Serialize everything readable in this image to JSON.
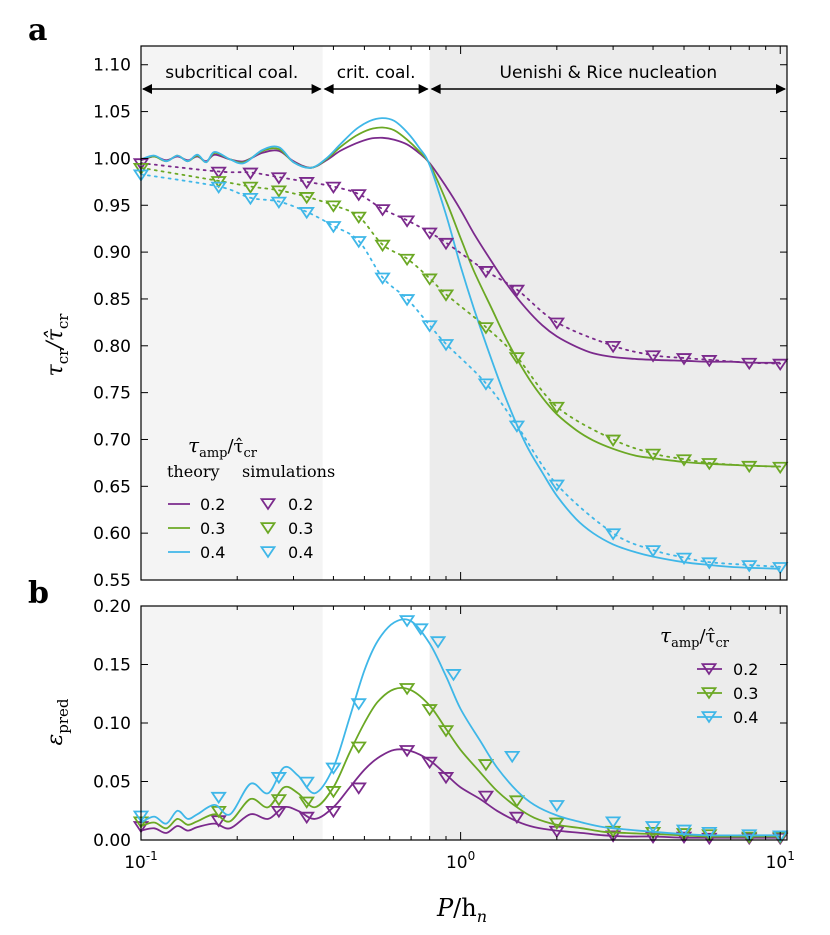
{
  "panel_labels": [
    "a",
    "b"
  ],
  "regions": {
    "labels": [
      "subcritical coal.",
      "crit. coal.",
      "Uenishi & Rice nucleation"
    ]
  },
  "legend_a": {
    "title_main": "τ",
    "title_sub": "amp",
    "title_rest": "/τ̂",
    "title_sub2": "cr",
    "col_theory": "theory",
    "col_sim": "simulations",
    "entries": [
      "0.2",
      "0.3",
      "0.4"
    ]
  },
  "legend_b": {
    "title_main": "τ",
    "title_sub": "amp",
    "title_rest": "/τ̂",
    "title_sub2": "cr",
    "entries": [
      "0.2",
      "0.3",
      "0.4"
    ]
  },
  "colors": {
    "0.2": "#7b2a8c",
    "0.3": "#6ba824",
    "0.4": "#3fb7e8",
    "shade": "#ececec",
    "shade_light": "#f4f4f4"
  },
  "chart_data": [
    {
      "type": "line",
      "panel": "a",
      "title": "",
      "ylabel_main": "τ",
      "ylabel_sub": "cr",
      "ylabel_rest": "/τ̂",
      "ylabel_sub2": "cr",
      "xscale": "log",
      "xlim": [
        0.1,
        10.5
      ],
      "ylim": [
        0.55,
        1.12
      ],
      "yticks": [
        "0.55",
        "0.60",
        "0.65",
        "0.70",
        "0.75",
        "0.80",
        "0.85",
        "0.90",
        "0.95",
        "1.00",
        "1.05",
        "1.10"
      ],
      "region_bounds": [
        0.37,
        0.8
      ],
      "series": [
        {
          "name": "0.2",
          "color": "#7b2a8c",
          "sim_x": [
            0.1,
            0.175,
            0.22,
            0.27,
            0.33,
            0.4,
            0.48,
            0.57,
            0.68,
            0.8,
            0.9,
            1.2,
            1.5,
            2.0,
            3.0,
            4.0,
            5.0,
            6.0,
            8.0,
            10.0
          ],
          "sim_y": [
            0.995,
            0.986,
            0.985,
            0.98,
            0.975,
            0.97,
            0.962,
            0.946,
            0.934,
            0.921,
            0.91,
            0.88,
            0.86,
            0.825,
            0.8,
            0.79,
            0.787,
            0.785,
            0.782,
            0.781
          ]
        },
        {
          "name": "0.3",
          "color": "#6ba824",
          "sim_x": [
            0.1,
            0.175,
            0.22,
            0.27,
            0.33,
            0.4,
            0.48,
            0.57,
            0.68,
            0.8,
            0.9,
            1.2,
            1.5,
            2.0,
            3.0,
            4.0,
            5.0,
            6.0,
            8.0,
            10.0
          ],
          "sim_y": [
            0.99,
            0.976,
            0.97,
            0.966,
            0.959,
            0.95,
            0.938,
            0.908,
            0.893,
            0.872,
            0.855,
            0.82,
            0.788,
            0.735,
            0.7,
            0.685,
            0.679,
            0.675,
            0.672,
            0.671
          ]
        },
        {
          "name": "0.4",
          "color": "#3fb7e8",
          "sim_x": [
            0.1,
            0.175,
            0.22,
            0.27,
            0.33,
            0.4,
            0.48,
            0.57,
            0.68,
            0.8,
            0.9,
            1.2,
            1.5,
            2.0,
            3.0,
            4.0,
            5.0,
            6.0,
            8.0,
            10.0
          ],
          "sim_y": [
            0.983,
            0.97,
            0.958,
            0.954,
            0.943,
            0.928,
            0.912,
            0.873,
            0.85,
            0.822,
            0.802,
            0.76,
            0.715,
            0.652,
            0.6,
            0.582,
            0.574,
            0.569,
            0.566,
            0.564
          ]
        }
      ],
      "theory": [
        {
          "name": "0.2",
          "x": [
            0.1,
            0.11,
            0.12,
            0.13,
            0.14,
            0.15,
            0.16,
            0.17,
            0.19,
            0.21,
            0.24,
            0.27,
            0.3,
            0.34,
            0.38,
            0.42,
            0.47,
            0.52,
            0.57,
            0.62,
            0.68,
            0.74,
            0.8,
            0.9,
            1.0,
            1.1,
            1.25,
            1.4,
            1.6,
            1.8,
            2.0,
            2.3,
            2.6,
            3.0,
            3.5,
            4.0,
            5.0,
            6.0,
            7.0,
            8.0,
            10.0
          ],
          "y": [
            0.998,
            1.002,
            0.998,
            1.002,
            0.998,
            1.002,
            0.997,
            1.004,
            0.999,
            0.997,
            1.006,
            1.008,
            0.997,
            0.99,
            0.998,
            1.008,
            1.016,
            1.021,
            1.022,
            1.02,
            1.015,
            1.006,
            0.995,
            0.97,
            0.945,
            0.92,
            0.89,
            0.865,
            0.84,
            0.822,
            0.81,
            0.799,
            0.792,
            0.788,
            0.786,
            0.785,
            0.784,
            0.783,
            0.783,
            0.782,
            0.782
          ]
        },
        {
          "name": "0.3",
          "x": [
            0.1,
            0.11,
            0.12,
            0.13,
            0.14,
            0.15,
            0.16,
            0.17,
            0.19,
            0.21,
            0.24,
            0.27,
            0.3,
            0.34,
            0.38,
            0.42,
            0.47,
            0.52,
            0.57,
            0.62,
            0.68,
            0.74,
            0.8,
            0.9,
            1.0,
            1.1,
            1.25,
            1.4,
            1.6,
            1.8,
            2.0,
            2.3,
            2.6,
            3.0,
            3.5,
            4.0,
            5.0,
            6.0,
            7.0,
            8.0,
            10.0
          ],
          "y": [
            0.999,
            1.002,
            0.997,
            1.003,
            0.997,
            1.003,
            0.996,
            1.006,
            0.999,
            0.996,
            1.008,
            1.01,
            0.996,
            0.99,
            0.999,
            1.012,
            1.024,
            1.031,
            1.033,
            1.03,
            1.02,
            1.008,
            0.994,
            0.955,
            0.915,
            0.88,
            0.84,
            0.805,
            0.77,
            0.745,
            0.727,
            0.71,
            0.699,
            0.69,
            0.683,
            0.68,
            0.676,
            0.674,
            0.673,
            0.672,
            0.671
          ]
        },
        {
          "name": "0.4",
          "x": [
            0.1,
            0.11,
            0.12,
            0.13,
            0.14,
            0.15,
            0.16,
            0.17,
            0.19,
            0.21,
            0.24,
            0.27,
            0.3,
            0.34,
            0.38,
            0.42,
            0.47,
            0.52,
            0.57,
            0.62,
            0.68,
            0.74,
            0.8,
            0.9,
            1.0,
            1.1,
            1.25,
            1.4,
            1.6,
            1.8,
            2.0,
            2.3,
            2.6,
            3.0,
            3.5,
            4.0,
            5.0,
            6.0,
            7.0,
            8.0,
            10.0
          ],
          "y": [
            0.999,
            1.003,
            0.997,
            1.003,
            0.997,
            1.004,
            0.996,
            1.007,
            0.999,
            0.995,
            1.009,
            1.012,
            0.996,
            0.99,
            1.0,
            1.015,
            1.031,
            1.04,
            1.043,
            1.04,
            1.028,
            1.012,
            0.993,
            0.94,
            0.885,
            0.84,
            0.785,
            0.74,
            0.695,
            0.665,
            0.64,
            0.615,
            0.6,
            0.588,
            0.58,
            0.575,
            0.569,
            0.566,
            0.564,
            0.563,
            0.562
          ]
        }
      ]
    },
    {
      "type": "line",
      "panel": "b",
      "ylabel_main": "ε",
      "ylabel_sub": "pred",
      "xlabel_main": "P",
      "xlabel_rest": "/h",
      "xlabel_sub": "n",
      "xscale": "log",
      "xlim": [
        0.1,
        10.5
      ],
      "ylim": [
        0.0,
        0.2
      ],
      "yticks": [
        "0.00",
        "0.05",
        "0.10",
        "0.15",
        "0.20"
      ],
      "xticks": [
        {
          "base": "10",
          "exp": "-1",
          "value": 0.1
        },
        {
          "base": "10",
          "exp": "0",
          "value": 1
        },
        {
          "base": "10",
          "exp": "1",
          "value": 10
        }
      ],
      "series": [
        {
          "name": "0.2",
          "color": "#7b2a8c",
          "sim_x": [
            0.1,
            0.175,
            0.27,
            0.33,
            0.4,
            0.48,
            0.68,
            0.8,
            0.9,
            1.2,
            1.5,
            2.0,
            3.0,
            4.0,
            5.0,
            6.0,
            8.0,
            10.0
          ],
          "sim_y": [
            0.012,
            0.017,
            0.025,
            0.02,
            0.025,
            0.045,
            0.077,
            0.067,
            0.054,
            0.038,
            0.02,
            0.008,
            0.004,
            0.003,
            0.003,
            0.002,
            0.002,
            0.002
          ],
          "x": [
            0.1,
            0.11,
            0.12,
            0.13,
            0.14,
            0.15,
            0.17,
            0.19,
            0.22,
            0.25,
            0.28,
            0.31,
            0.35,
            0.4,
            0.45,
            0.5,
            0.55,
            0.62,
            0.7,
            0.8,
            0.9,
            1.0,
            1.15,
            1.3,
            1.5,
            1.7,
            2.0,
            2.4,
            2.8,
            3.3,
            4.0,
            5.0,
            6.0,
            8.0,
            10.0
          ],
          "y": [
            0.008,
            0.01,
            0.006,
            0.012,
            0.008,
            0.011,
            0.014,
            0.01,
            0.022,
            0.018,
            0.028,
            0.025,
            0.018,
            0.028,
            0.045,
            0.06,
            0.07,
            0.077,
            0.076,
            0.068,
            0.056,
            0.045,
            0.035,
            0.025,
            0.016,
            0.011,
            0.008,
            0.006,
            0.004,
            0.003,
            0.003,
            0.002,
            0.002,
            0.002,
            0.002
          ]
        },
        {
          "name": "0.3",
          "color": "#6ba824",
          "sim_x": [
            0.1,
            0.175,
            0.27,
            0.33,
            0.4,
            0.48,
            0.68,
            0.8,
            0.9,
            1.2,
            1.5,
            2.0,
            3.0,
            4.0,
            5.0,
            6.0,
            8.0,
            10.0
          ],
          "sim_y": [
            0.016,
            0.025,
            0.035,
            0.033,
            0.042,
            0.08,
            0.13,
            0.112,
            0.094,
            0.065,
            0.034,
            0.015,
            0.008,
            0.007,
            0.006,
            0.005,
            0.003,
            0.003
          ],
          "x": [
            0.1,
            0.11,
            0.12,
            0.13,
            0.14,
            0.15,
            0.17,
            0.19,
            0.22,
            0.25,
            0.28,
            0.31,
            0.35,
            0.4,
            0.45,
            0.5,
            0.55,
            0.62,
            0.7,
            0.8,
            0.9,
            1.0,
            1.15,
            1.3,
            1.5,
            1.7,
            2.0,
            2.4,
            2.8,
            3.3,
            4.0,
            5.0,
            6.0,
            8.0,
            10.0
          ],
          "y": [
            0.012,
            0.015,
            0.01,
            0.018,
            0.013,
            0.016,
            0.022,
            0.016,
            0.035,
            0.028,
            0.045,
            0.04,
            0.028,
            0.045,
            0.075,
            0.1,
            0.118,
            0.129,
            0.128,
            0.115,
            0.095,
            0.077,
            0.058,
            0.042,
            0.028,
            0.019,
            0.013,
            0.01,
            0.007,
            0.006,
            0.005,
            0.004,
            0.003,
            0.003,
            0.003
          ]
        },
        {
          "name": "0.4",
          "color": "#3fb7e8",
          "sim_x": [
            0.1,
            0.175,
            0.27,
            0.33,
            0.4,
            0.48,
            0.68,
            0.75,
            0.85,
            0.95,
            1.45,
            2.0,
            3.0,
            4.0,
            5.0,
            6.0,
            8.0,
            10.0
          ],
          "sim_y": [
            0.021,
            0.037,
            0.054,
            0.05,
            0.062,
            0.117,
            0.188,
            0.181,
            0.17,
            0.142,
            0.072,
            0.03,
            0.016,
            0.012,
            0.009,
            0.007,
            0.005,
            0.004
          ],
          "x": [
            0.1,
            0.11,
            0.12,
            0.13,
            0.14,
            0.15,
            0.17,
            0.19,
            0.22,
            0.25,
            0.28,
            0.31,
            0.35,
            0.4,
            0.45,
            0.5,
            0.55,
            0.62,
            0.7,
            0.8,
            0.9,
            1.0,
            1.15,
            1.3,
            1.5,
            1.7,
            2.0,
            2.4,
            2.8,
            3.3,
            4.0,
            5.0,
            6.0,
            8.0,
            10.0
          ],
          "y": [
            0.015,
            0.02,
            0.014,
            0.025,
            0.018,
            0.022,
            0.03,
            0.022,
            0.048,
            0.04,
            0.062,
            0.055,
            0.04,
            0.062,
            0.105,
            0.145,
            0.17,
            0.186,
            0.187,
            0.168,
            0.14,
            0.112,
            0.085,
            0.062,
            0.042,
            0.03,
            0.021,
            0.015,
            0.011,
            0.009,
            0.007,
            0.005,
            0.004,
            0.004,
            0.004
          ]
        }
      ]
    }
  ]
}
